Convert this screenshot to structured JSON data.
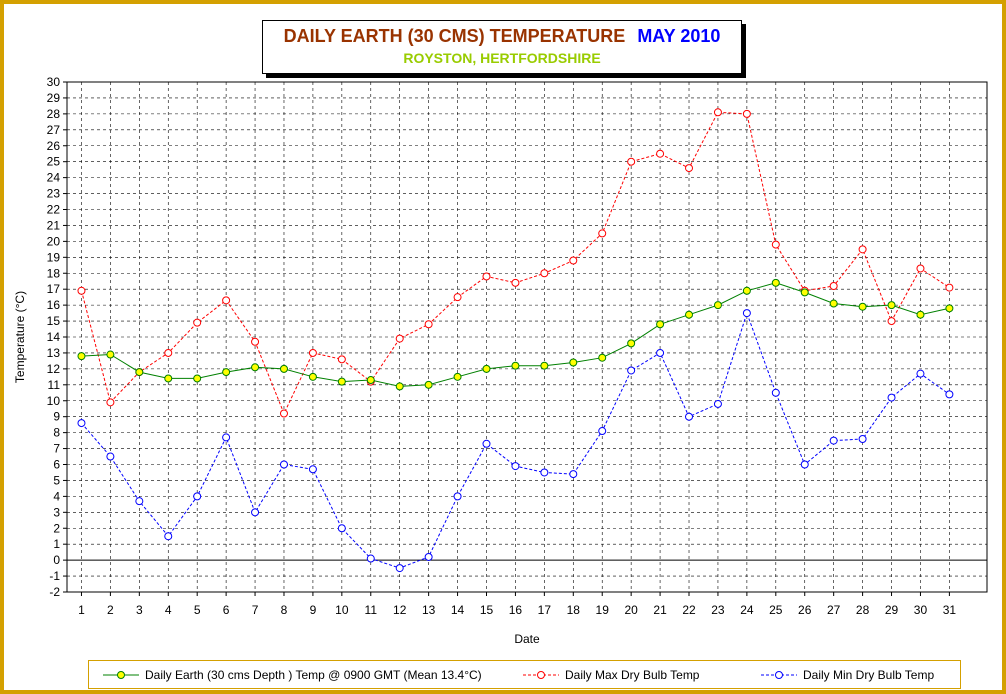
{
  "title": {
    "main": "DAILY EARTH (30 CMS) TEMPERATURE",
    "month": "MAY 2010",
    "subtitle": "ROYSTON, HERTFORDSHIRE"
  },
  "chart_data": {
    "type": "line",
    "xlabel": "Date",
    "ylabel": "Temperature (°C)",
    "ylim": [
      -2,
      30
    ],
    "grid": true,
    "legend_position": "bottom",
    "x": [
      1,
      2,
      3,
      4,
      5,
      6,
      7,
      8,
      9,
      10,
      11,
      12,
      13,
      14,
      15,
      16,
      17,
      18,
      19,
      20,
      21,
      22,
      23,
      24,
      25,
      26,
      27,
      28,
      29,
      30,
      31
    ],
    "series": [
      {
        "name": "Daily Earth (30 cms Depth ) Temp @ 0900 GMT (Mean 13.4°C)",
        "color": "#008000",
        "marker_fill": "#ffff00",
        "line_style": "solid",
        "values": [
          12.8,
          12.9,
          11.8,
          11.4,
          11.4,
          11.8,
          12.1,
          12.0,
          11.5,
          11.2,
          11.3,
          10.9,
          11.0,
          11.5,
          12.0,
          12.2,
          12.2,
          12.4,
          12.7,
          13.6,
          14.8,
          15.4,
          16.0,
          16.9,
          17.4,
          16.8,
          16.1,
          15.9,
          16.0,
          15.4,
          15.8
        ]
      },
      {
        "name": "Daily Max Dry Bulb Temp",
        "color": "#ff0000",
        "marker_fill": "#ffffff",
        "line_style": "dashed",
        "values": [
          16.9,
          9.9,
          11.8,
          13.0,
          14.9,
          16.3,
          13.7,
          9.2,
          13.0,
          12.6,
          11.2,
          13.9,
          14.8,
          16.5,
          17.8,
          17.4,
          18.0,
          18.8,
          20.5,
          25.0,
          25.5,
          24.6,
          28.1,
          28.0,
          19.8,
          16.9,
          17.2,
          19.5,
          15.0,
          18.3,
          17.1
        ]
      },
      {
        "name": "Daily Min Dry Bulb Temp",
        "color": "#0000ff",
        "marker_fill": "#ffffff",
        "line_style": "dashed",
        "values": [
          8.6,
          6.5,
          3.7,
          1.5,
          4.0,
          7.7,
          3.0,
          6.0,
          5.7,
          2.0,
          0.1,
          -0.5,
          0.2,
          4.0,
          7.3,
          5.9,
          5.5,
          5.4,
          8.1,
          11.9,
          13.0,
          9.0,
          9.8,
          15.5,
          10.5,
          6.0,
          7.5,
          7.6,
          10.2,
          11.7,
          10.4
        ]
      }
    ]
  }
}
